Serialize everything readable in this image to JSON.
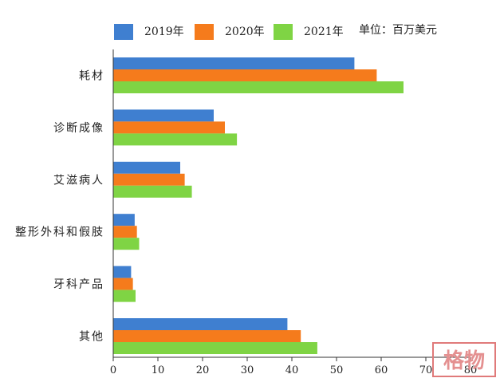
{
  "chart_data": {
    "type": "bar",
    "orientation": "horizontal",
    "categories": [
      "耗材",
      "诊断成像",
      "艾滋病人",
      "整形外科和假肢",
      "牙科产品",
      "其他"
    ],
    "series": [
      {
        "name": "2019年",
        "color": "#3f7fd0",
        "values": [
          54,
          22.5,
          15,
          4.8,
          4,
          39
        ]
      },
      {
        "name": "2020年",
        "color": "#f57b1c",
        "values": [
          59,
          25,
          16,
          5.3,
          4.4,
          42
        ]
      },
      {
        "name": "2021年",
        "color": "#7fd444",
        "values": [
          65,
          27.7,
          17.6,
          5.8,
          5,
          45.7
        ]
      }
    ],
    "unit_note": "单位：百万美元",
    "xlim": [
      0,
      80
    ],
    "xticks": [
      0,
      10,
      20,
      30,
      40,
      50,
      60,
      70,
      80
    ],
    "grid": false,
    "legend_position": "top"
  },
  "watermark": {
    "text": "格物"
  }
}
